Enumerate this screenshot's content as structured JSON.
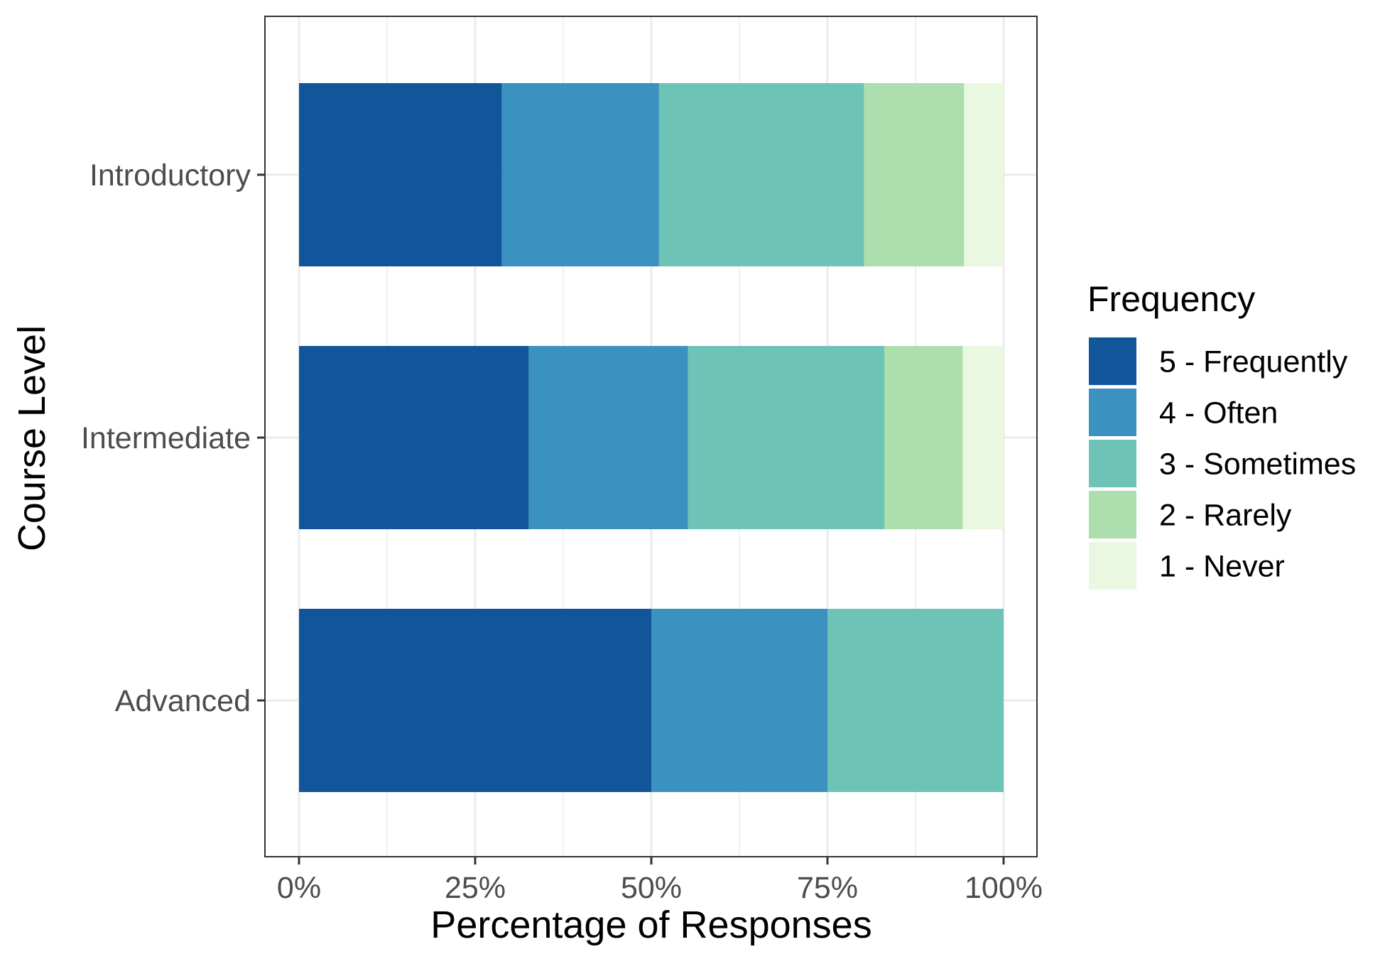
{
  "chart_data": {
    "type": "bar",
    "orientation": "horizontal",
    "stacked": true,
    "xlabel": "Percentage of Responses",
    "ylabel": "Course Level",
    "xlim": [
      0,
      100
    ],
    "x_ticks": [
      0,
      25,
      50,
      75,
      100
    ],
    "x_tick_labels": [
      "0%",
      "25%",
      "50%",
      "75%",
      "100%"
    ],
    "categories": [
      "Introductory",
      "Intermediate",
      "Advanced"
    ],
    "series": [
      {
        "name": "5 - Frequently",
        "color": "#11559B",
        "values": [
          28.8,
          32.6,
          50.0
        ]
      },
      {
        "name": "4 - Often",
        "color": "#3B91C0",
        "values": [
          22.3,
          22.6,
          25.0
        ]
      },
      {
        "name": "3 - Sometimes",
        "color": "#6CC3B6",
        "values": [
          29.1,
          27.9,
          25.0
        ]
      },
      {
        "name": "2 - Rarely",
        "color": "#ADDFAE",
        "values": [
          14.2,
          11.1,
          0.0
        ]
      },
      {
        "name": "1 - Never",
        "color": "#EAF7E1",
        "values": [
          5.6,
          5.8,
          0.0
        ]
      }
    ],
    "legend": {
      "title": "Frequency",
      "position": "right"
    },
    "grid": true
  }
}
